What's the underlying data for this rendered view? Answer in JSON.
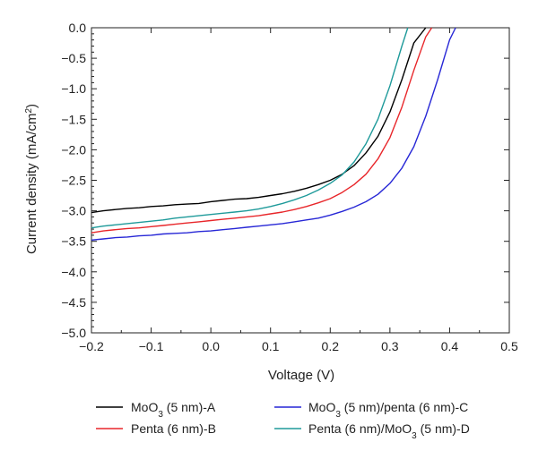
{
  "chart_data": {
    "type": "line",
    "xlabel": "Voltage (V)",
    "ylabel": "Current density (mA/cm²)",
    "xlim": [
      -0.2,
      0.5
    ],
    "ylim": [
      -5.0,
      0.0
    ],
    "x_ticks": [
      "−0.2",
      "−0.1",
      "0.0",
      "0.1",
      "0.2",
      "0.3",
      "0.4",
      "0.5"
    ],
    "y_ticks": [
      "0.0",
      "−0.5",
      "−1.0",
      "−1.5",
      "−2.0",
      "−2.5",
      "−3.0",
      "−3.5",
      "−4.0",
      "−4.5",
      "−5.0"
    ],
    "legend_position": "bottom",
    "series": [
      {
        "name": "MoO3 (5 nm)-A",
        "color": "#000000",
        "x": [
          -0.2,
          -0.18,
          -0.16,
          -0.14,
          -0.12,
          -0.1,
          -0.08,
          -0.06,
          -0.04,
          -0.02,
          0.0,
          0.02,
          0.04,
          0.06,
          0.08,
          0.1,
          0.12,
          0.14,
          0.16,
          0.18,
          0.2,
          0.22,
          0.24,
          0.26,
          0.28,
          0.3,
          0.32,
          0.34,
          0.36
        ],
        "y": [
          -3.03,
          -3.0,
          -2.98,
          -2.96,
          -2.95,
          -2.93,
          -2.92,
          -2.9,
          -2.89,
          -2.88,
          -2.85,
          -2.83,
          -2.81,
          -2.8,
          -2.78,
          -2.75,
          -2.72,
          -2.68,
          -2.63,
          -2.57,
          -2.5,
          -2.4,
          -2.26,
          -2.05,
          -1.78,
          -1.38,
          -0.85,
          -0.25,
          0.0
        ]
      },
      {
        "name": "Penta (6 nm)-B",
        "color": "#e8262a",
        "x": [
          -0.2,
          -0.18,
          -0.16,
          -0.14,
          -0.12,
          -0.1,
          -0.08,
          -0.06,
          -0.04,
          -0.02,
          0.0,
          0.02,
          0.04,
          0.06,
          0.08,
          0.1,
          0.12,
          0.14,
          0.16,
          0.18,
          0.2,
          0.22,
          0.24,
          0.26,
          0.28,
          0.3,
          0.32,
          0.34,
          0.36,
          0.37
        ],
        "y": [
          -3.36,
          -3.33,
          -3.31,
          -3.29,
          -3.28,
          -3.26,
          -3.24,
          -3.22,
          -3.2,
          -3.18,
          -3.16,
          -3.14,
          -3.12,
          -3.1,
          -3.08,
          -3.05,
          -3.02,
          -2.98,
          -2.93,
          -2.87,
          -2.8,
          -2.7,
          -2.57,
          -2.4,
          -2.15,
          -1.8,
          -1.3,
          -0.7,
          -0.15,
          0.0
        ]
      },
      {
        "name": "MoO3 (5 nm)/penta (6 nm)-C",
        "color": "#2727d6",
        "x": [
          -0.2,
          -0.18,
          -0.16,
          -0.14,
          -0.12,
          -0.1,
          -0.08,
          -0.06,
          -0.04,
          -0.02,
          0.0,
          0.02,
          0.04,
          0.06,
          0.08,
          0.1,
          0.12,
          0.14,
          0.16,
          0.18,
          0.2,
          0.22,
          0.24,
          0.26,
          0.28,
          0.3,
          0.32,
          0.34,
          0.36,
          0.38,
          0.4,
          0.41
        ],
        "y": [
          -3.48,
          -3.46,
          -3.44,
          -3.43,
          -3.41,
          -3.4,
          -3.38,
          -3.37,
          -3.36,
          -3.34,
          -3.33,
          -3.31,
          -3.29,
          -3.27,
          -3.25,
          -3.23,
          -3.21,
          -3.18,
          -3.15,
          -3.12,
          -3.07,
          -3.01,
          -2.94,
          -2.85,
          -2.73,
          -2.55,
          -2.3,
          -1.95,
          -1.45,
          -0.85,
          -0.2,
          0.0
        ]
      },
      {
        "name": "Penta (6 nm)/MoO3 (5 nm)-D",
        "color": "#1e9a9a",
        "x": [
          -0.2,
          -0.18,
          -0.16,
          -0.14,
          -0.12,
          -0.1,
          -0.08,
          -0.06,
          -0.04,
          -0.02,
          0.0,
          0.02,
          0.04,
          0.06,
          0.08,
          0.1,
          0.12,
          0.14,
          0.16,
          0.18,
          0.2,
          0.22,
          0.24,
          0.26,
          0.28,
          0.3,
          0.32,
          0.33
        ],
        "y": [
          -3.28,
          -3.25,
          -3.23,
          -3.21,
          -3.19,
          -3.17,
          -3.15,
          -3.12,
          -3.1,
          -3.08,
          -3.06,
          -3.04,
          -3.02,
          -3.0,
          -2.97,
          -2.93,
          -2.88,
          -2.82,
          -2.75,
          -2.66,
          -2.55,
          -2.41,
          -2.2,
          -1.9,
          -1.5,
          -0.95,
          -0.3,
          0.0
        ]
      }
    ]
  },
  "legend": {
    "items": [
      {
        "base": "MoO",
        "sub": "3",
        "rest": " (5 nm)-A"
      },
      {
        "base": "Penta (6 nm)-B",
        "sub": "",
        "rest": ""
      },
      {
        "base": "MoO",
        "sub": "3",
        "rest": " (5 nm)/penta (6 nm)-C"
      },
      {
        "base": "Penta (6 nm)/MoO",
        "sub": "3",
        "rest": " (5 nm)-D"
      }
    ]
  },
  "ylabel_parts": {
    "main": "Current density (mA/cm",
    "sup": "2",
    "end": ")"
  }
}
